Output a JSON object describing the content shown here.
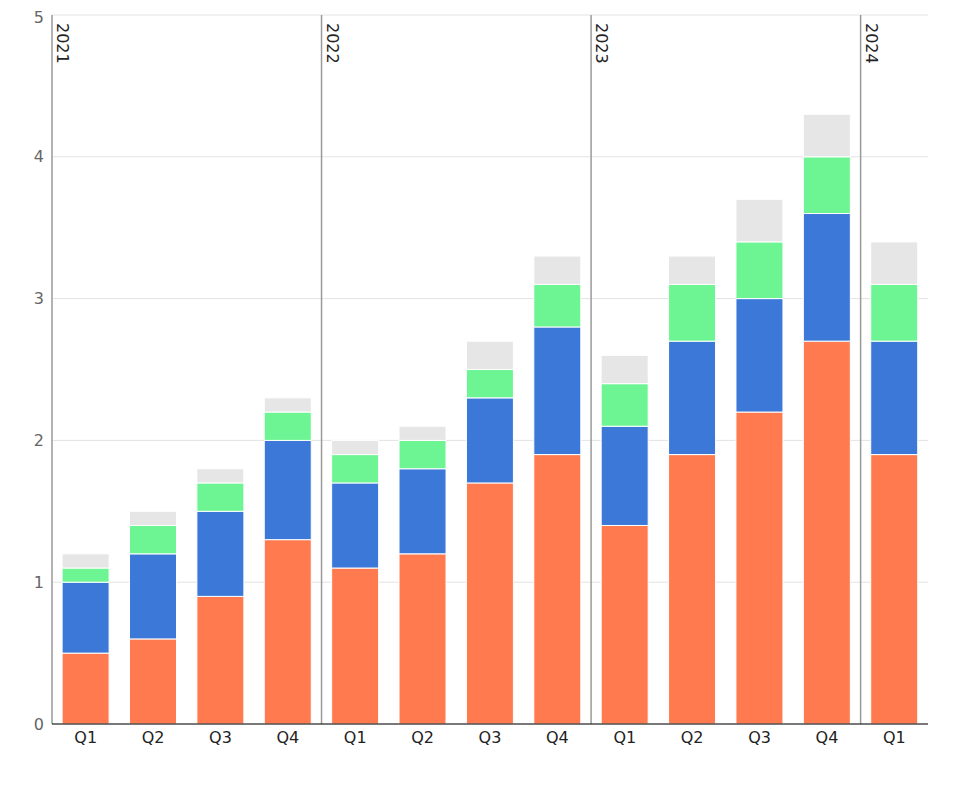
{
  "chart_data": {
    "type": "bar",
    "stacked": true,
    "grid": true,
    "categories": [
      "Q1",
      "Q2",
      "Q3",
      "Q4",
      "Q1",
      "Q2",
      "Q3",
      "Q4",
      "Q1",
      "Q2",
      "Q3",
      "Q4",
      "Q1"
    ],
    "years": [
      "2021",
      "2021",
      "2021",
      "2021",
      "2022",
      "2022",
      "2022",
      "2022",
      "2023",
      "2023",
      "2023",
      "2023",
      "2024"
    ],
    "ylim": [
      0,
      5
    ],
    "yticks": [
      0,
      1,
      2,
      3,
      4,
      5
    ],
    "series": [
      {
        "color": "#ff7a4f",
        "values": [
          0.5,
          0.6,
          0.9,
          1.3,
          1.1,
          1.2,
          1.7,
          1.9,
          1.4,
          1.9,
          2.2,
          2.7,
          1.9
        ]
      },
      {
        "color": "#3c78d8",
        "values": [
          0.5,
          0.6,
          0.6,
          0.7,
          0.6,
          0.6,
          0.6,
          0.9,
          0.7,
          0.8,
          0.8,
          0.9,
          0.8
        ]
      },
      {
        "color": "#6cf592",
        "values": [
          0.1,
          0.2,
          0.2,
          0.2,
          0.2,
          0.2,
          0.2,
          0.3,
          0.3,
          0.4,
          0.4,
          0.4,
          0.4
        ]
      },
      {
        "color": "#e6e6e6",
        "values": [
          0.1,
          0.1,
          0.1,
          0.1,
          0.1,
          0.1,
          0.2,
          0.2,
          0.2,
          0.2,
          0.3,
          0.3,
          0.3
        ]
      }
    ]
  }
}
